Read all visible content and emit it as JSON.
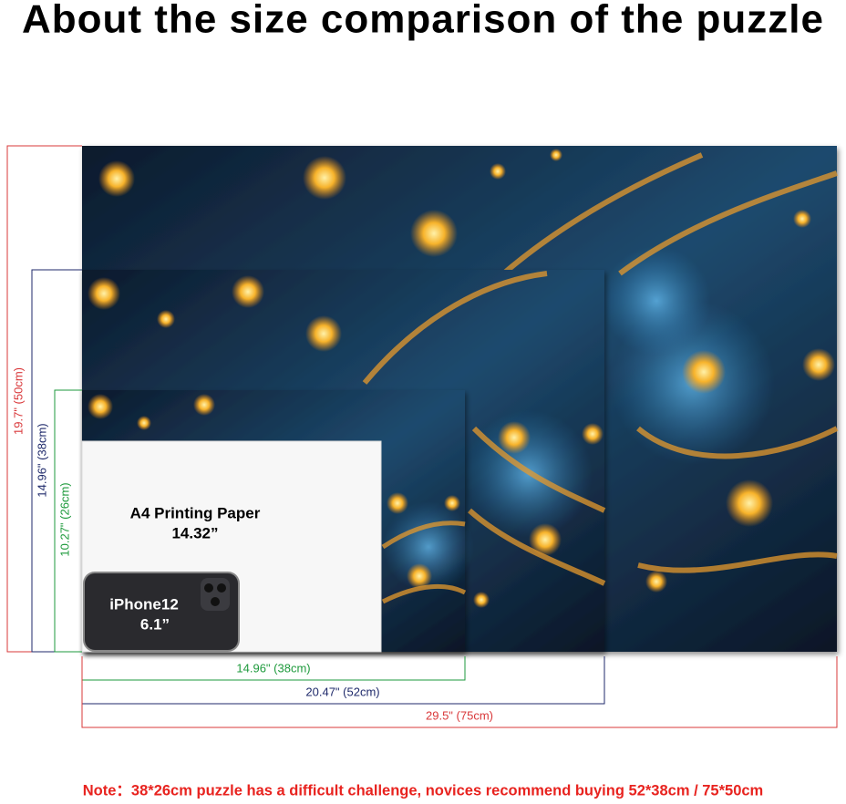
{
  "header": {
    "title": "About the size comparison of the puzzle"
  },
  "heights": {
    "large": "19.7\" (50cm)",
    "medium": "14.96\" (38cm)",
    "small": "10.27\" (26cm)"
  },
  "widths": {
    "small": "14.96\" (38cm)",
    "medium": "20.47\" (52cm)",
    "large": "29.5\" (75cm)"
  },
  "paper": {
    "label": "A4 Printing Paper",
    "size": "14.32”"
  },
  "phone": {
    "label": "iPhone12",
    "size": "6.1”"
  },
  "note": "Note：38*26cm puzzle has a difficult challenge, novices recommend buying 52*38cm / 75*50cm"
}
